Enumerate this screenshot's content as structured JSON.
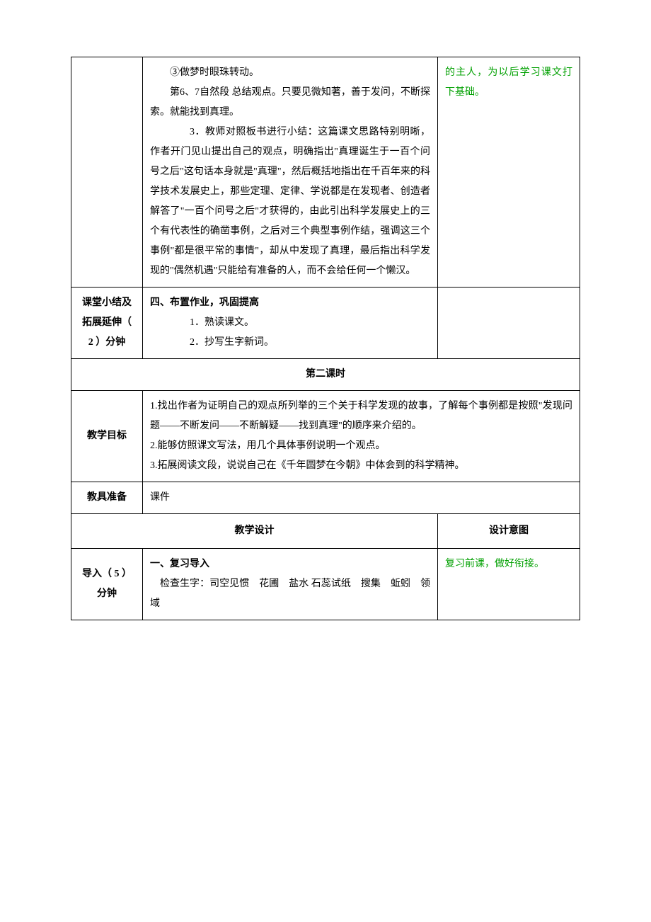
{
  "row1": {
    "body": {
      "p1": "③做梦时眼珠转动。",
      "p2": "第6、7自然段 总结观点。只要见微知著，善于发问，不断探索。就能找到真理。",
      "p3": "3．教师对照板书进行小结：这篇课文思路特别明晰，作者开门见山提出自己的观点，明确指出\"真理诞生于一百个问号之后\"这句话本身就是\"真理\"，然后概括地指出在千百年来的科学技术发展史上，那些定理、定律、学说都是在发现者、创造者解答了\"一百个问号之后\"才获得的，由此引出科学发展史上的三个有代表性的确凿事例，之后对三个典型事例作结，强调这三个事例\"都是很平常的事情\"，却从中发现了真理，最后指出科学发现的\"偶然机遇\"只能给有准备的人，而不会给任何一个懒汉。"
    },
    "right": "的主人，为以后学习课文打下基础。"
  },
  "row2": {
    "label": "课堂小结及拓展延伸（ 2 ）分钟",
    "body": {
      "title": "四、布置作业，巩固提高",
      "p1": "1．熟读课文。",
      "p2": "2．抄写生字新词。"
    }
  },
  "section2_title": "第二课时",
  "row3": {
    "label": "教学目标",
    "body": {
      "p1": "1.找出作者为证明自己的观点所列举的三个关于科学发现的故事，了解每个事例都是按照\"发现问题——不断发问——不断解疑——找到真理\"的顺序来介绍的。",
      "p2": "2.能够仿照课文写法，用几个具体事例说明一个观点。",
      "p3": "3.拓展阅读文段，说说自己在《千年圆梦在今朝》中体会到的科学精神。"
    }
  },
  "row4": {
    "label": "教具准备",
    "body": "课件"
  },
  "row5": {
    "left": "教学设计",
    "right": "设计意图"
  },
  "row6": {
    "label": "导入（ 5 ）分钟",
    "body": {
      "title": "一、复习导入",
      "p1": "检查生字：司空见惯　花圃　盐水 石蕊试纸　搜集　蚯蚓　领域"
    },
    "right": "复习前课，做好衔接。"
  }
}
